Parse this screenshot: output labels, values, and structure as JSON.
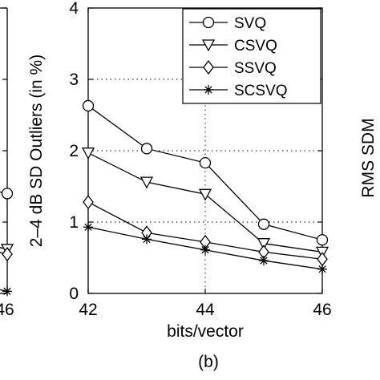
{
  "figure": {
    "panel_label": "(b)",
    "right_neighbor_ylabel": "RMS SDM"
  },
  "left_neighbor": {
    "xtick_label": "46",
    "series_last_points": [
      {
        "name": "SVQ",
        "y": 1.4
      },
      {
        "name": "CSVQ",
        "y": 0.62
      },
      {
        "name": "SSVQ",
        "y": 0.55
      },
      {
        "name": "SCSVQ",
        "y": 0.03
      }
    ]
  },
  "chart_data": {
    "type": "line",
    "title": "",
    "xlabel": "bits/vector",
    "ylabel": "2–4 dB SD Outliers (in %)",
    "x": [
      42,
      43,
      44,
      45,
      46
    ],
    "xlim": [
      42,
      46
    ],
    "ylim": [
      0,
      4
    ],
    "xticks": [
      "42",
      "44",
      "46"
    ],
    "xtick_values": [
      42,
      44,
      46
    ],
    "yticks": [
      "0",
      "1",
      "2",
      "3",
      "4"
    ],
    "ytick_values": [
      0,
      1,
      2,
      3,
      4
    ],
    "grid": "dotted",
    "legend_position": "top-right",
    "series": [
      {
        "name": "SVQ",
        "marker": "circle",
        "values": [
          2.63,
          2.03,
          1.83,
          0.97,
          0.75
        ]
      },
      {
        "name": "CSVQ",
        "marker": "triangle-down",
        "values": [
          1.97,
          1.56,
          1.39,
          0.7,
          0.58
        ]
      },
      {
        "name": "SSVQ",
        "marker": "diamond",
        "values": [
          1.28,
          0.85,
          0.72,
          0.58,
          0.48
        ]
      },
      {
        "name": "SCSVQ",
        "marker": "asterisk",
        "values": [
          0.93,
          0.76,
          0.61,
          0.46,
          0.34
        ]
      }
    ]
  }
}
